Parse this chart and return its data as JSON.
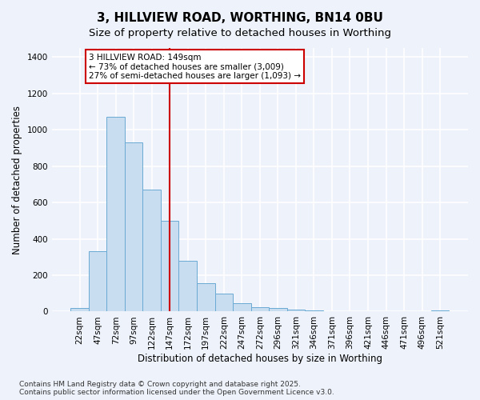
{
  "title": "3, HILLVIEW ROAD, WORTHING, BN14 0BU",
  "subtitle": "Size of property relative to detached houses in Worthing",
  "xlabel": "Distribution of detached houses by size in Worthing",
  "ylabel": "Number of detached properties",
  "categories": [
    "22sqm",
    "47sqm",
    "72sqm",
    "97sqm",
    "122sqm",
    "147sqm",
    "172sqm",
    "197sqm",
    "222sqm",
    "247sqm",
    "272sqm",
    "296sqm",
    "321sqm",
    "346sqm",
    "371sqm",
    "396sqm",
    "421sqm",
    "446sqm",
    "471sqm",
    "496sqm",
    "521sqm"
  ],
  "values": [
    20,
    330,
    1070,
    930,
    670,
    500,
    280,
    155,
    100,
    45,
    25,
    20,
    10,
    5,
    0,
    0,
    0,
    0,
    0,
    0,
    5
  ],
  "bar_color": "#c9ddf0",
  "bar_edge_color": "#6aaad4",
  "vline_x": 5,
  "vline_color": "#cc0000",
  "annotation_text": "3 HILLVIEW ROAD: 149sqm\n← 73% of detached houses are smaller (3,009)\n27% of semi-detached houses are larger (1,093) →",
  "annotation_box_color": "#ffffff",
  "annotation_box_edge_color": "#cc0000",
  "ylim": [
    0,
    1450
  ],
  "yticks": [
    0,
    200,
    400,
    600,
    800,
    1000,
    1200,
    1400
  ],
  "footnote": "Contains HM Land Registry data © Crown copyright and database right 2025.\nContains public sector information licensed under the Open Government Licence v3.0.",
  "background_color": "#eef2fa",
  "plot_background_color": "#eef2fa",
  "grid_color": "#ffffff",
  "title_fontsize": 11,
  "subtitle_fontsize": 9.5,
  "xlabel_fontsize": 8.5,
  "ylabel_fontsize": 8.5,
  "tick_fontsize": 7.5,
  "annotation_fontsize": 7.5,
  "footnote_fontsize": 6.5
}
